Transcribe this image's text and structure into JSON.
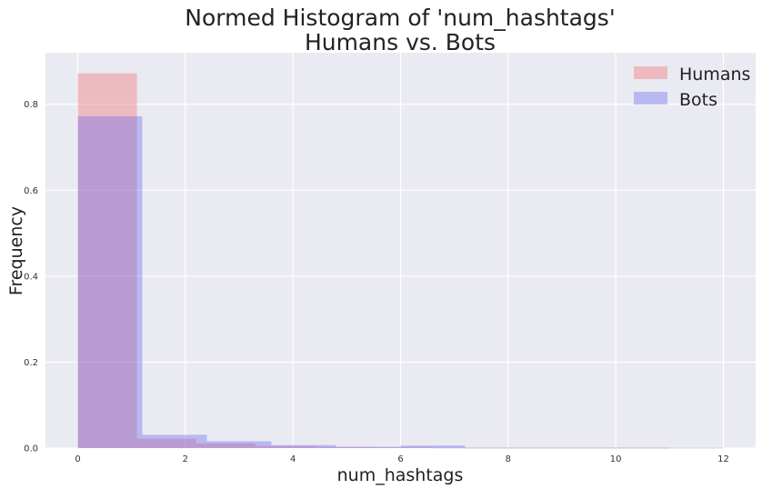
{
  "chart_data": {
    "type": "bar",
    "title_lines": [
      "Normed Histogram of 'num_hashtags'",
      "Humans vs. Bots"
    ],
    "xlabel": "num_hashtags",
    "ylabel": "Frequency",
    "xlim": [
      -0.6,
      12.6
    ],
    "ylim": [
      0,
      0.92
    ],
    "xticks": [
      0,
      2,
      4,
      6,
      8,
      10,
      12
    ],
    "yticks": [
      0.0,
      0.2,
      0.4,
      0.6,
      0.8
    ],
    "xtick_labels": [
      "0",
      "2",
      "4",
      "6",
      "8",
      "10",
      "12"
    ],
    "ytick_labels": [
      "0.0",
      "0.2",
      "0.4",
      "0.6",
      "0.8"
    ],
    "grid": true,
    "legend_position": "top-right",
    "series": [
      {
        "name": "Humans",
        "color": "#f08080",
        "opacity": 0.45,
        "bins": [
          {
            "x0": 0.0,
            "x1": 1.1,
            "value": 0.872
          },
          {
            "x0": 1.1,
            "x1": 2.2,
            "value": 0.022
          },
          {
            "x0": 2.2,
            "x1": 3.3,
            "value": 0.011
          },
          {
            "x0": 3.3,
            "x1": 4.4,
            "value": 0.005
          },
          {
            "x0": 4.4,
            "x1": 5.5,
            "value": 0.003
          },
          {
            "x0": 5.5,
            "x1": 6.6,
            "value": 0.002
          },
          {
            "x0": 6.6,
            "x1": 7.7,
            "value": 0.001
          },
          {
            "x0": 7.7,
            "x1": 8.8,
            "value": 0.001
          },
          {
            "x0": 8.8,
            "x1": 9.9,
            "value": 0.001
          },
          {
            "x0": 9.9,
            "x1": 11.0,
            "value": 0.001
          }
        ]
      },
      {
        "name": "Bots",
        "color": "#6f6ff0",
        "opacity": 0.4,
        "bins": [
          {
            "x0": 0.0,
            "x1": 1.2,
            "value": 0.772
          },
          {
            "x0": 1.2,
            "x1": 2.4,
            "value": 0.031
          },
          {
            "x0": 2.4,
            "x1": 3.6,
            "value": 0.016
          },
          {
            "x0": 3.6,
            "x1": 4.8,
            "value": 0.007
          },
          {
            "x0": 4.8,
            "x1": 6.0,
            "value": 0.003
          },
          {
            "x0": 6.0,
            "x1": 7.2,
            "value": 0.006
          },
          {
            "x0": 7.2,
            "x1": 8.4,
            "value": 0.001
          },
          {
            "x0": 8.4,
            "x1": 9.6,
            "value": 0.001
          },
          {
            "x0": 9.6,
            "x1": 10.8,
            "value": 0.001
          },
          {
            "x0": 10.8,
            "x1": 12.0,
            "value": 0.001
          }
        ]
      }
    ]
  }
}
